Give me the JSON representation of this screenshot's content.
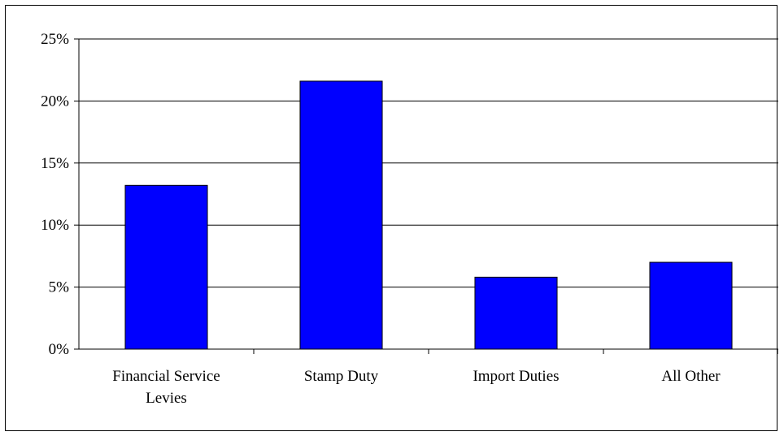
{
  "colors": {
    "bar_fill": "#0000FF",
    "bar_stroke": "#000000",
    "grid": "#000000",
    "background": "#FFFFFF"
  },
  "chart_data": {
    "type": "bar",
    "title": "",
    "xlabel": "",
    "ylabel": "",
    "categories": [
      [
        "Financial Service",
        "Levies"
      ],
      [
        "Stamp Duty"
      ],
      [
        "Import Duties"
      ],
      [
        "All Other"
      ]
    ],
    "values": [
      13.2,
      21.6,
      5.8,
      7.0
    ],
    "ylim": [
      0,
      25
    ],
    "yticks": [
      0,
      5,
      10,
      15,
      20,
      25
    ],
    "ytick_labels": [
      "0%",
      "5%",
      "10%",
      "15%",
      "20%",
      "25%"
    ],
    "grid": true,
    "legend": "none"
  }
}
